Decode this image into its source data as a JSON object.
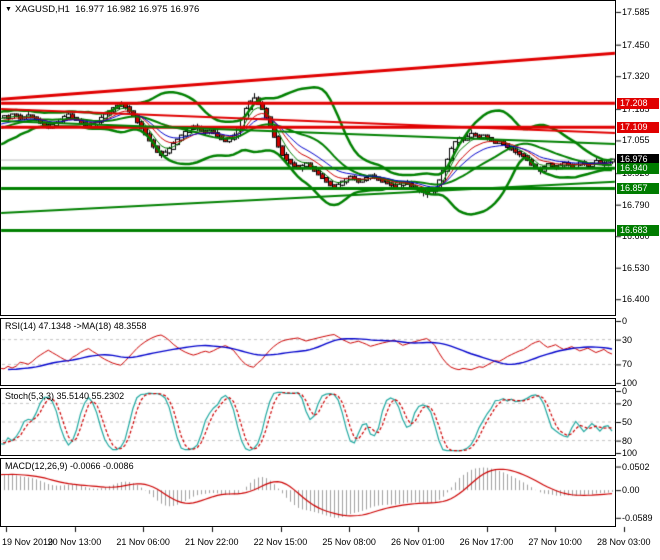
{
  "main_chart": {
    "symbol_header": "XAGUSD,H1",
    "quote_line": "16.977 16.982 16.975 16.976",
    "y_axis_ticks": [
      "17.585",
      "17.450",
      "17.320",
      "17.185",
      "17.055",
      "16.920",
      "16.790",
      "16.660",
      "16.530",
      "16.400"
    ],
    "price_badges": [
      {
        "text": "17.208",
        "bg": "#e00000"
      },
      {
        "text": "17.109",
        "bg": "#e00000"
      },
      {
        "text": "16.976",
        "bg": "#000000"
      },
      {
        "text": "16.940",
        "bg": "#007c00"
      },
      {
        "text": "16.857",
        "bg": "#007c00"
      },
      {
        "text": "16.683",
        "bg": "#007c00"
      }
    ]
  },
  "colors": {
    "resistance": "#e00000",
    "support": "#008000",
    "current_price_line": "#b8b8b8",
    "bull_candle": "#ffffff",
    "bear_candle": "#d00000",
    "candle_outline": "#000000",
    "bollinger": "#008000",
    "ma_fast": "#008000",
    "ma_mid": "#cc0000",
    "ma_slow": "#0000cc",
    "level_dash": "#c4c4c4"
  },
  "time_axis": {
    "labels": [
      "19 Nov 2019",
      "20 Nov 13:00",
      "21 Nov 06:00",
      "21 Nov 22:00",
      "22 Nov 15:00",
      "25 Nov 08:00",
      "26 Nov 01:00",
      "26 Nov 17:00",
      "27 Nov 10:00",
      "28 Nov 03:00"
    ]
  },
  "chart_data": {
    "type": "candlestick",
    "symbol": "XAGUSD",
    "timeframe": "H1",
    "ohlc_header": {
      "open": "16.977",
      "high": "16.982",
      "low": "16.975",
      "close": "16.976"
    },
    "price_range": [
      16.339,
      17.626
    ],
    "closes_pre": [
      16.98,
      16.992,
      16.985,
      17.0,
      17.012,
      17.005,
      17.02,
      17.032,
      17.025,
      17.04,
      17.052,
      17.045,
      17.06,
      17.072,
      17.065,
      17.08,
      17.092,
      17.085,
      17.1,
      17.112,
      17.105,
      17.118,
      17.128,
      17.12,
      17.132,
      17.142,
      17.135,
      17.146,
      17.155,
      17.15
    ],
    "closes": [
      17.155,
      17.148,
      17.162,
      17.157,
      17.145,
      17.15,
      17.158,
      17.15,
      17.138,
      17.128,
      17.118,
      17.108,
      17.118,
      17.128,
      17.14,
      17.152,
      17.162,
      17.148,
      17.14,
      17.128,
      17.118,
      17.11,
      17.122,
      17.132,
      17.148,
      17.162,
      17.175,
      17.188,
      17.198,
      17.205,
      17.192,
      17.175,
      17.155,
      17.13,
      17.105,
      17.08,
      17.055,
      17.03,
      17.008,
      16.995,
      17.005,
      17.02,
      17.04,
      17.058,
      17.075,
      17.09,
      17.102,
      17.112,
      17.105,
      17.095,
      17.088,
      17.095,
      17.085,
      17.072,
      17.06,
      17.052,
      17.062,
      17.075,
      17.105,
      17.145,
      17.185,
      17.215,
      17.228,
      17.205,
      17.185,
      17.15,
      17.11,
      17.07,
      17.03,
      16.995,
      16.975,
      16.96,
      16.95,
      16.94,
      16.95,
      16.96,
      16.945,
      16.93,
      16.915,
      16.9,
      16.885,
      16.87,
      16.86,
      16.872,
      16.885,
      16.895,
      16.905,
      16.895,
      16.885,
      16.892,
      16.9,
      16.91,
      16.902,
      16.893,
      16.885,
      16.878,
      16.87,
      16.862,
      16.872,
      16.882,
      16.875,
      16.865,
      16.858,
      16.85,
      16.842,
      16.835,
      16.845,
      16.858,
      16.89,
      16.93,
      16.975,
      17.02,
      17.048,
      17.065,
      17.058,
      17.07,
      17.082,
      17.075,
      17.068,
      17.075,
      17.065,
      17.055,
      17.045,
      17.05,
      17.04,
      17.028,
      17.018,
      17.008,
      16.998,
      16.99,
      16.975,
      16.955,
      16.94,
      16.93,
      16.945,
      16.958,
      16.95,
      16.94,
      16.952,
      16.962,
      16.955,
      16.945,
      16.955,
      16.965,
      16.958,
      16.95,
      16.96,
      16.97,
      16.963,
      16.955,
      16.968,
      16.976
    ],
    "spikes": [
      {
        "i": 29,
        "high": 17.215
      },
      {
        "i": 62,
        "high": 17.25
      },
      {
        "i": 39,
        "low": 16.982
      },
      {
        "i": 104,
        "low": 16.824
      },
      {
        "i": 105,
        "low": 16.818
      },
      {
        "i": 116,
        "high": 17.1
      },
      {
        "i": 133,
        "low": 16.915
      }
    ],
    "overlays": {
      "bollinger": {
        "period": 20,
        "deviation": 2
      },
      "ma_fast_period": 5,
      "ma_mid_period": 9,
      "ma_slow_period": 14
    },
    "horizontal_lines": [
      {
        "price": 17.208,
        "color": "#e00000",
        "width": 3
      },
      {
        "price": 17.109,
        "color": "#e00000",
        "width": 3
      },
      {
        "price": 16.94,
        "color": "#008000",
        "width": 3
      },
      {
        "price": 16.857,
        "color": "#008000",
        "width": 3
      },
      {
        "price": 16.683,
        "color": "#008000",
        "width": 3
      },
      {
        "price": 16.976,
        "color": "#b8b8b8",
        "width": 1
      }
    ],
    "trend_lines": [
      {
        "x1": 0,
        "p1": 17.225,
        "x2": 1,
        "p2": 17.415,
        "color": "#e00000",
        "width": 3
      },
      {
        "x1": 0,
        "p1": 17.185,
        "x2": 1,
        "p2": 17.085,
        "color": "#e00000",
        "width": 2
      },
      {
        "x1": 0,
        "p1": 17.135,
        "x2": 1,
        "p2": 17.04,
        "color": "#008000",
        "width": 2
      },
      {
        "x1": 0,
        "p1": 16.755,
        "x2": 1,
        "p2": 16.885,
        "color": "#008000",
        "width": 2
      }
    ],
    "indicator_panels": [
      {
        "type": "rsi",
        "label": "RSI(14) 47.1348  ->MA(18) 48.3558",
        "period": 14,
        "ma_period": 18,
        "levels": [
          70,
          30
        ],
        "scale_labels": [
          "100",
          "70",
          "30",
          "0"
        ],
        "range": [
          0,
          100
        ],
        "line_color": "#cc0000",
        "ma_color": "#0000cc"
      },
      {
        "type": "stoch",
        "label": "Stoch(5,3,3) 35.5140 55.2302",
        "k": 5,
        "slowing": 3,
        "d": 3,
        "levels": [
          80,
          50,
          20
        ],
        "scale_labels": [
          "100",
          "80",
          "50",
          "20",
          "0"
        ],
        "range": [
          0,
          100
        ],
        "k_color": "#20a8a0",
        "d_color": "#cc0000"
      },
      {
        "type": "macd",
        "label": "MACD(12,26,9) -0.0066 -0.0086",
        "fast": 12,
        "slow": 26,
        "signal": 9,
        "scale_labels": [
          "0.0502",
          "0.00",
          "-0.0589"
        ],
        "scale_values": [
          0.0502,
          0.0,
          -0.0589
        ],
        "range": [
          0.062,
          -0.072
        ],
        "hist_color": "#a0a0a0",
        "signal_color": "#cc0000"
      }
    ]
  }
}
